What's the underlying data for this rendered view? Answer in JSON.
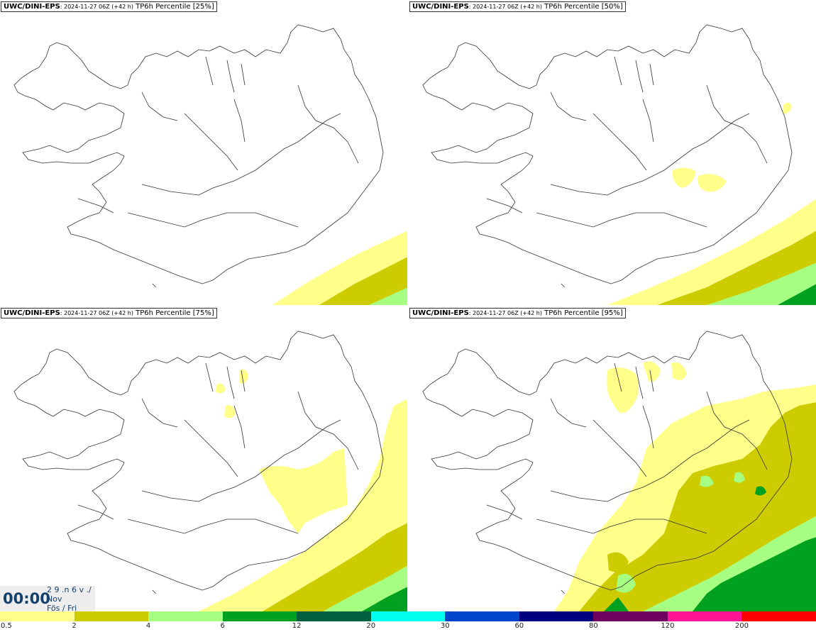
{
  "panels": [
    {
      "model": "UWC/DINI-EPS",
      "meta": ": 2024-11-27 06Z (+42 h)",
      "label": "TP6h Percentile [25%]",
      "percentile": 25
    },
    {
      "model": "UWC/DINI-EPS",
      "meta": ": 2024-11-27 06Z (+42 h)",
      "label": "TP6h Percentile [50%]",
      "percentile": 50
    },
    {
      "model": "UWC/DINI-EPS",
      "meta": ": 2024-11-27 06Z (+42 h)",
      "label": "TP6h Percentile [75%]",
      "percentile": 75
    },
    {
      "model": "UWC/DINI-EPS",
      "meta": ": 2024-11-27 06Z (+42 h)",
      "label": "TP6h Percentile [95%]",
      "percentile": 95
    }
  ],
  "valid_time": {
    "time": "00:00",
    "day": "2 9 .n 6 v ./",
    "month": "Nov",
    "weekday": "Fös / Fri"
  },
  "colorbar": {
    "unit_levels": [
      "0.5",
      "2",
      "4",
      "6",
      "12",
      "20",
      "30",
      "60",
      "80",
      "120",
      "200"
    ],
    "colors": [
      "#ffff8a",
      "#cccc00",
      "#a6ff80",
      "#00a020",
      "#006040",
      "#00ffee",
      "#0044cc",
      "#000080",
      "#700060",
      "#ff1493",
      "#ff0000"
    ]
  },
  "icons": [
    "iceland-coastline-map"
  ]
}
